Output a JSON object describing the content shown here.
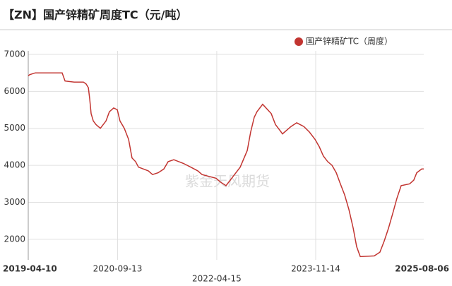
{
  "chart_data": {
    "type": "line",
    "title": "【ZN】国产锌精矿周度TC（元/吨）",
    "watermark": "紫金天风期货",
    "x": [
      "2019-04-10",
      "2019-04-18",
      "2019-05-21",
      "2019-10-25",
      "2019-11-11",
      "2020-01-03",
      "2020-02-26",
      "2020-03-13",
      "2020-03-26",
      "2020-04-03",
      "2020-04-11",
      "2020-04-24",
      "2020-05-10",
      "2020-06-04",
      "2020-07-07",
      "2020-07-27",
      "2020-08-21",
      "2020-09-11",
      "2020-09-27",
      "2020-10-22",
      "2020-11-16",
      "2020-12-06",
      "2020-12-27",
      "2021-01-13",
      "2021-03-11",
      "2021-04-05",
      "2021-05-08",
      "2021-06-10",
      "2021-07-05",
      "2021-08-07",
      "2021-10-03",
      "2021-11-14",
      "2021-12-25",
      "2022-01-19",
      "2022-04-11",
      "2022-05-06",
      "2022-06-08",
      "2022-07-03",
      "2022-08-05",
      "2022-08-30",
      "2022-10-10",
      "2022-10-30",
      "2022-11-20",
      "2022-12-06",
      "2023-01-08",
      "2023-02-27",
      "2023-03-24",
      "2023-04-18",
      "2023-05-04",
      "2023-06-23",
      "2023-07-26",
      "2023-09-05",
      "2023-10-08",
      "2023-11-10",
      "2023-12-05",
      "2023-12-29",
      "2024-01-23",
      "2024-02-17",
      "2024-03-13",
      "2024-04-06",
      "2024-05-01",
      "2024-05-26",
      "2024-06-20",
      "2024-07-10",
      "2024-07-31",
      "2024-10-21",
      "2024-11-23",
      "2024-12-18",
      "2025-01-12",
      "2025-02-06",
      "2025-03-02",
      "2025-03-27",
      "2025-05-16",
      "2025-06-09",
      "2025-06-26",
      "2025-07-25",
      "2025-08-06"
    ],
    "series": [
      {
        "name": "国产锌精矿TC（周度）",
        "color": "#c23531",
        "values": [
          6420,
          6450,
          6500,
          6500,
          6280,
          6250,
          6250,
          6200,
          6100,
          5800,
          5400,
          5200,
          5100,
          5000,
          5200,
          5450,
          5550,
          5500,
          5200,
          5000,
          4700,
          4200,
          4100,
          3950,
          3850,
          3750,
          3800,
          3900,
          4100,
          4150,
          4050,
          3950,
          3850,
          3750,
          3650,
          3550,
          3450,
          3600,
          3800,
          3950,
          4400,
          4900,
          5300,
          5450,
          5650,
          5400,
          5100,
          4950,
          4850,
          5050,
          5150,
          5050,
          4900,
          4700,
          4500,
          4250,
          4100,
          4000,
          3800,
          3500,
          3200,
          2800,
          2300,
          1800,
          1530,
          1550,
          1650,
          1950,
          2300,
          2700,
          3100,
          3450,
          3500,
          3600,
          3800,
          3900,
          3900
        ]
      }
    ],
    "xlim": [
      "2019-04-10",
      "2025-08-06"
    ],
    "xticks": [
      "2019-04-10",
      "2020-09-13",
      "2022-04-15",
      "2023-11-14",
      "2025-08-06"
    ],
    "ylim": [
      1500,
      7000
    ],
    "yticks": [
      2000,
      3000,
      4000,
      5000,
      6000,
      7000
    ],
    "grid": true
  }
}
